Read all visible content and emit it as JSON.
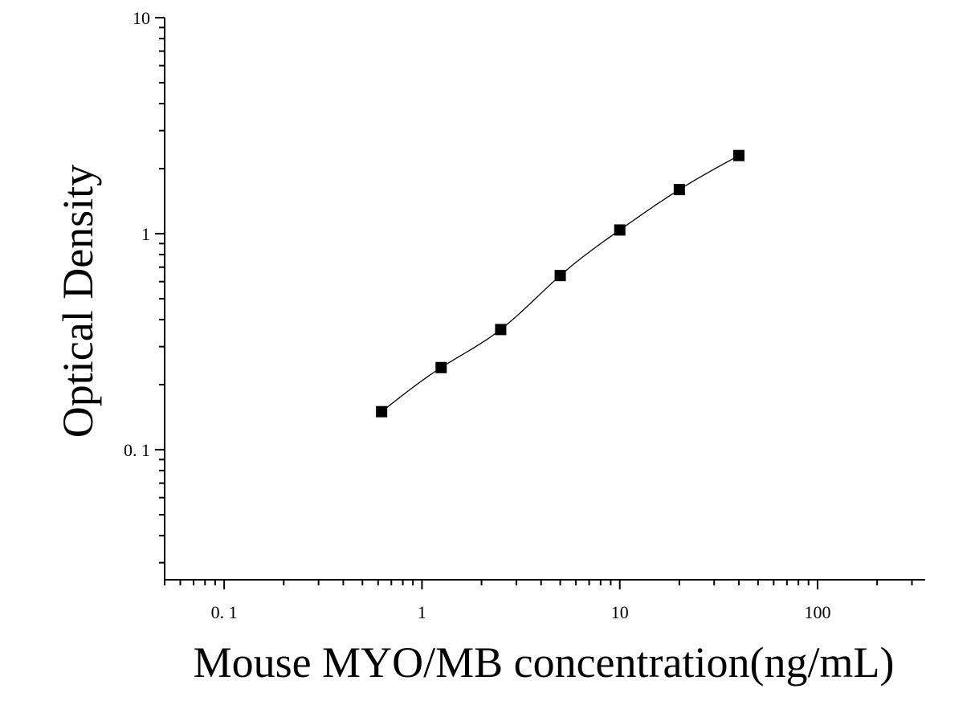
{
  "chart_data": {
    "type": "scatter",
    "xlabel": "Mouse MYO/MB concentration(ng/mL)",
    "ylabel": "Optical Density",
    "x_scale": "log",
    "y_scale": "log",
    "xlim": [
      0.05,
      350
    ],
    "ylim": [
      0.025,
      10
    ],
    "x_ticks": [
      {
        "value": 0.1,
        "label": "0. 1"
      },
      {
        "value": 1,
        "label": "1"
      },
      {
        "value": 10,
        "label": "10"
      },
      {
        "value": 100,
        "label": "100"
      }
    ],
    "y_ticks": [
      {
        "value": 0.1,
        "label": "0. 1"
      },
      {
        "value": 1,
        "label": "1"
      },
      {
        "value": 10,
        "label": "10"
      }
    ],
    "grid": false,
    "series": [
      {
        "marker": "square",
        "color": "#000000",
        "fit_line": true,
        "points": [
          {
            "x": 0.625,
            "y": 0.15
          },
          {
            "x": 1.25,
            "y": 0.24
          },
          {
            "x": 2.5,
            "y": 0.36
          },
          {
            "x": 5,
            "y": 0.64
          },
          {
            "x": 10,
            "y": 1.04
          },
          {
            "x": 20,
            "y": 1.6
          },
          {
            "x": 40,
            "y": 2.3
          }
        ]
      }
    ]
  }
}
